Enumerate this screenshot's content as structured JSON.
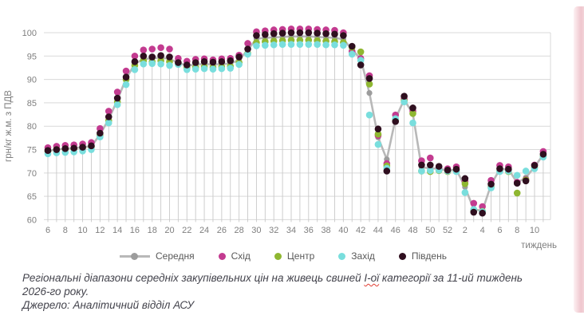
{
  "chart_data": {
    "type": "line",
    "title": "",
    "xlabel": "тиждень",
    "ylabel": "грн/кг ж.м. з ПДВ",
    "ylim": [
      60,
      100
    ],
    "y_ticks": [
      100,
      95,
      90,
      85,
      80,
      75,
      70,
      65,
      60
    ],
    "x_tick_rule": "label every even week",
    "legend_position": "bottom-center",
    "grid": "horizontal gridlines + vertical drop lines under each weekly point cluster",
    "weeks": [
      6,
      7,
      8,
      9,
      10,
      11,
      12,
      13,
      14,
      15,
      16,
      17,
      18,
      19,
      20,
      21,
      22,
      23,
      24,
      25,
      26,
      27,
      28,
      29,
      30,
      31,
      32,
      33,
      34,
      35,
      36,
      37,
      38,
      39,
      40,
      41,
      42,
      43,
      44,
      45,
      46,
      47,
      48,
      49,
      50,
      51,
      52,
      1,
      2,
      3,
      4,
      5,
      6,
      7,
      8,
      9,
      10,
      11
    ],
    "series": [
      {
        "name": "Середня",
        "style": "line-with-markers",
        "line_color": "#b8b8b8",
        "marker_color": "#9c9c9c",
        "values": [
          74.7,
          75.0,
          75.2,
          75.3,
          75.5,
          75.7,
          78.2,
          81.5,
          85.6,
          90.2,
          93.3,
          94.4,
          94.5,
          94.7,
          94.4,
          93.6,
          92.9,
          93.2,
          93.3,
          93.2,
          93.3,
          93.4,
          94.2,
          96.3,
          98.7,
          98.9,
          99.0,
          99.1,
          99.2,
          99.2,
          99.2,
          99.1,
          99.0,
          98.9,
          98.6,
          96.4,
          94.4,
          87.1,
          77.6,
          72.9,
          81.6,
          85.7,
          82.6,
          71.2,
          71.0,
          70.9,
          70.5,
          70.7,
          67.0,
          62.2,
          61.9,
          67.5,
          70.8,
          70.8,
          67.9,
          69.0,
          71.3,
          73.9
        ]
      },
      {
        "name": "Схід",
        "style": "markers",
        "marker_color": "#c33b90",
        "values": [
          75.4,
          75.7,
          75.9,
          76.0,
          76.2,
          76.5,
          79.5,
          83.2,
          87.3,
          91.8,
          95.0,
          96.3,
          96.5,
          96.8,
          96.5,
          94.5,
          93.9,
          94.3,
          94.4,
          94.2,
          94.4,
          94.5,
          95.2,
          97.7,
          100.2,
          100.4,
          100.6,
          100.7,
          100.8,
          100.8,
          100.8,
          100.7,
          100.6,
          100.5,
          100.0,
          96.0,
          94.5,
          90.8,
          78.0,
          72.0,
          82.4,
          85.8,
          83.2,
          72.6,
          73.2,
          71.2,
          70.9,
          71.3,
          68.2,
          63.5,
          62.8,
          68.4,
          71.6,
          71.3,
          68.0,
          68.6,
          71.7,
          74.6
        ]
      },
      {
        "name": "Центр",
        "style": "markers",
        "marker_color": "#8fb731",
        "values": [
          74.6,
          75.0,
          75.1,
          75.2,
          75.4,
          75.6,
          78.0,
          81.2,
          85.2,
          90.0,
          93.0,
          94.0,
          93.8,
          94.0,
          93.8,
          93.3,
          92.5,
          92.6,
          92.7,
          92.6,
          92.7,
          92.8,
          93.6,
          95.6,
          97.9,
          98.1,
          98.2,
          98.3,
          98.4,
          98.4,
          98.4,
          98.3,
          98.2,
          98.1,
          97.9,
          96.9,
          95.9,
          89.0,
          78.3,
          71.5,
          81.3,
          85.4,
          82.7,
          70.4,
          70.3,
          70.5,
          70.3,
          70.4,
          67.7,
          62.0,
          61.8,
          67.0,
          70.4,
          70.3,
          65.7,
          68.5,
          71.2,
          73.6
        ]
      },
      {
        "name": "Захід",
        "style": "markers",
        "marker_color": "#79dedd",
        "values": [
          74.1,
          74.3,
          74.4,
          74.5,
          74.7,
          75.0,
          77.7,
          80.7,
          84.6,
          88.9,
          92.1,
          93.3,
          93.4,
          93.3,
          93.0,
          93.2,
          92.1,
          92.2,
          92.3,
          92.2,
          92.3,
          92.4,
          93.2,
          95.4,
          97.2,
          97.3,
          97.4,
          97.5,
          97.5,
          97.5,
          97.5,
          97.5,
          97.4,
          97.4,
          97.3,
          95.4,
          94.1,
          82.4,
          76.1,
          71.0,
          81.6,
          85.2,
          80.7,
          70.4,
          70.5,
          70.6,
          70.4,
          70.3,
          65.8,
          62.2,
          61.7,
          66.8,
          70.3,
          70.4,
          69.5,
          70.4,
          70.9,
          73.4
        ]
      },
      {
        "name": "Південь",
        "style": "markers",
        "marker_color": "#2f0f1f",
        "values": [
          74.8,
          75.0,
          75.2,
          75.3,
          75.5,
          75.8,
          78.5,
          82.0,
          86.0,
          90.5,
          93.8,
          95.0,
          94.8,
          95.1,
          94.8,
          93.6,
          93.1,
          93.6,
          93.8,
          93.7,
          93.8,
          94.0,
          94.8,
          96.5,
          99.4,
          99.6,
          99.8,
          99.9,
          100.0,
          100.0,
          100.0,
          99.9,
          99.8,
          99.7,
          99.4,
          97.1,
          93.1,
          90.2,
          79.4,
          70.4,
          81.0,
          86.4,
          83.9,
          71.7,
          71.7,
          71.4,
          70.6,
          70.8,
          68.8,
          61.6,
          61.4,
          67.6,
          70.9,
          70.8,
          67.8,
          68.3,
          71.6,
          74.0
        ]
      }
    ]
  },
  "axes": {
    "y_title": "грн/кг ж.м. з ПДВ",
    "x_title": "тиждень",
    "tick_color": "#7f7f7f",
    "grid_color": "#d9d9d9",
    "dropline_color": "#c9c9c9"
  },
  "caption": {
    "part1": "Регіональні діапазони середніх закупівельних цін на живець свиней ",
    "misspelled": "І-ої",
    "part2": " категорії за 11-ий тиждень",
    "line2": "2026-го року.",
    "source": "Джерело: Аналітичний відділ АСУ"
  }
}
